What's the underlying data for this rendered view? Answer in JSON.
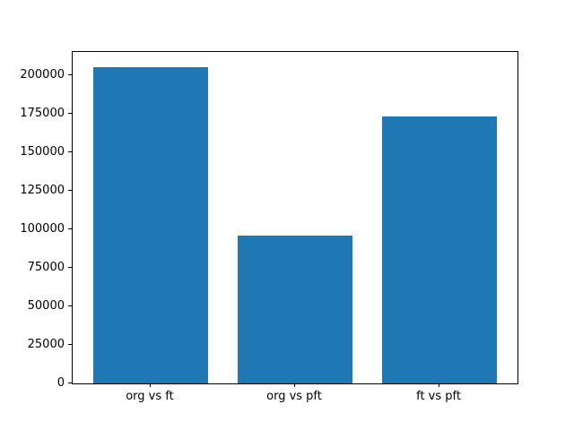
{
  "chart_data": {
    "type": "bar",
    "title": "",
    "xlabel": "",
    "ylabel": "",
    "categories": [
      "org vs ft",
      "org vs pft",
      "ft vs pft"
    ],
    "values": [
      205000,
      95700,
      173000
    ],
    "yticks": [
      0,
      25000,
      50000,
      75000,
      100000,
      125000,
      150000,
      175000,
      200000
    ],
    "ylim": [
      0,
      214900
    ],
    "bar_color": "#1f77b4",
    "frame_color": "#000000",
    "background_color": "#ffffff",
    "grid": false,
    "legend": null,
    "bar_width_fraction": 0.8
  }
}
